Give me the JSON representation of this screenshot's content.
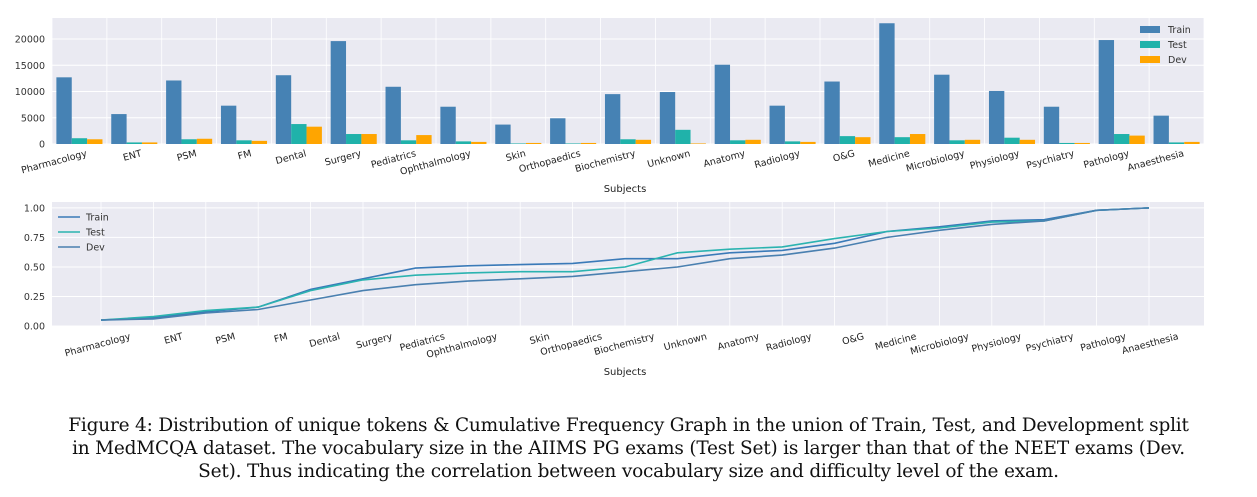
{
  "colors": {
    "train": "#4682b4",
    "test": "#20b2aa",
    "dev": "#ffa500",
    "plot_bg": "#eaeaf2",
    "grid": "#ffffff"
  },
  "chart_data": [
    {
      "type": "bar",
      "title": "",
      "xlabel": "Subjects",
      "ylabel": "",
      "ylim": [
        0,
        24000
      ],
      "yticks": [
        0,
        5000,
        10000,
        15000,
        20000
      ],
      "ytick_labels": [
        "0",
        "5000",
        "10000",
        "15000",
        "20000"
      ],
      "legend": "top-right",
      "categories": [
        "Pharmacology",
        "ENT",
        "PSM",
        "FM",
        "Dental",
        "Surgery",
        "Pediatrics",
        "Ophthalmology",
        "Skin",
        "Orthopaedics",
        "Biochemistry",
        "Unknown",
        "Anatomy",
        "Radiology",
        "O&G",
        "Medicine",
        "Microbiology",
        "Physiology",
        "Psychiatry",
        "Pathology",
        "Anaesthesia"
      ],
      "series": [
        {
          "name": "Train",
          "values": [
            12700,
            5700,
            12100,
            7300,
            13100,
            19600,
            10900,
            7100,
            3700,
            4900,
            9500,
            9900,
            15100,
            7300,
            11900,
            23000,
            13200,
            10100,
            7100,
            19800,
            5400
          ]
        },
        {
          "name": "Test",
          "values": [
            1100,
            300,
            900,
            700,
            3800,
            1900,
            700,
            500,
            100,
            100,
            900,
            2700,
            700,
            500,
            1500,
            1300,
            700,
            1200,
            200,
            1900,
            300
          ]
        },
        {
          "name": "Dev",
          "values": [
            900,
            300,
            1000,
            600,
            3300,
            1900,
            1700,
            400,
            200,
            200,
            800,
            100,
            800,
            400,
            1300,
            1900,
            800,
            800,
            200,
            1600,
            400
          ]
        }
      ]
    },
    {
      "type": "line",
      "title": "",
      "xlabel": "Subjects",
      "ylabel": "",
      "ylim": [
        0,
        1.05
      ],
      "yticks": [
        0,
        0.25,
        0.5,
        0.75,
        1.0
      ],
      "ytick_labels": [
        "0.00",
        "0.25",
        "0.50",
        "0.75",
        "1.00"
      ],
      "legend": "top-left",
      "categories": [
        "Pharmacology",
        "ENT",
        "PSM",
        "FM",
        "Dental",
        "Surgery",
        "Pediatrics",
        "Ophthalmology",
        "Skin",
        "Orthopaedics",
        "Biochemistry",
        "Unknown",
        "Anatomy",
        "Radiology",
        "O&G",
        "Medicine",
        "Microbiology",
        "Physiology",
        "Psychiatry",
        "Pathology",
        "Anaesthesia"
      ],
      "series": [
        {
          "name": "Train",
          "values": [
            0.05,
            0.07,
            0.12,
            0.16,
            0.31,
            0.4,
            0.49,
            0.51,
            0.52,
            0.53,
            0.57,
            0.57,
            0.62,
            0.64,
            0.7,
            0.8,
            0.84,
            0.89,
            0.9,
            0.98,
            1.0
          ]
        },
        {
          "name": "Test",
          "values": [
            0.05,
            0.08,
            0.13,
            0.16,
            0.3,
            0.39,
            0.43,
            0.45,
            0.46,
            0.46,
            0.5,
            0.62,
            0.65,
            0.67,
            0.74,
            0.8,
            0.83,
            0.88,
            0.89,
            0.98,
            1.0
          ]
        },
        {
          "name": "Dev",
          "values": [
            0.05,
            0.06,
            0.11,
            0.14,
            0.22,
            0.3,
            0.35,
            0.38,
            0.4,
            0.42,
            0.46,
            0.5,
            0.57,
            0.6,
            0.66,
            0.75,
            0.81,
            0.86,
            0.89,
            0.98,
            1.0
          ]
        }
      ]
    }
  ],
  "caption": {
    "line1": "Figure 4: Distribution of unique tokens & Cumulative Frequency Graph in the union of Train, Test, and Development split",
    "line2": "in MedMCQA dataset. The vocabulary size in the AIIMS PG exams (Test Set) is larger than that of the NEET exams (Dev.",
    "line3": "Set). Thus indicating the correlation between vocabulary size and difficulty level of the exam."
  }
}
